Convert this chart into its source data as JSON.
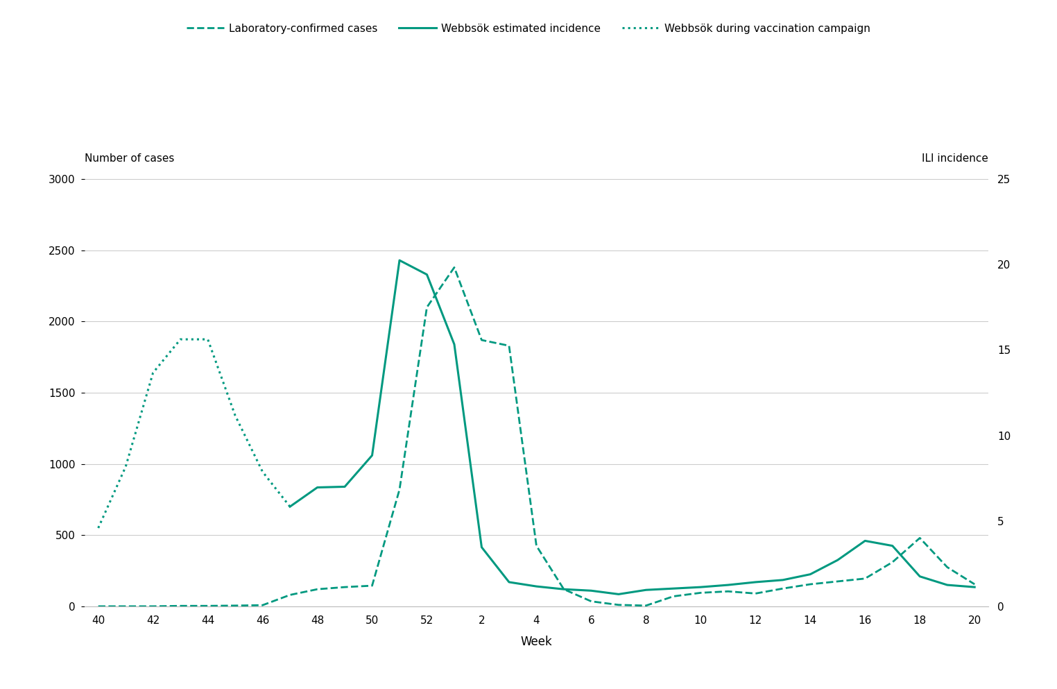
{
  "color": "#009980",
  "background": "#ffffff",
  "title_left": "Number of cases",
  "title_right": "ILI incidence",
  "xlabel": "Week",
  "ylim_left": [
    0,
    3000
  ],
  "ylim_right": [
    0,
    25
  ],
  "yticks_left": [
    0,
    500,
    1000,
    1500,
    2000,
    2500,
    3000
  ],
  "yticks_right": [
    0,
    5,
    10,
    15,
    20,
    25
  ],
  "xtick_labels": [
    "40",
    "42",
    "44",
    "46",
    "48",
    "50",
    "52",
    "2",
    "4",
    "6",
    "8",
    "10",
    "12",
    "14",
    "16",
    "18",
    "20"
  ],
  "legend_labels": [
    "Laboratory-confirmed cases",
    "Webbsök estimated incidence",
    "Webbsök during vaccination campaign"
  ],
  "lab_x": [
    0,
    1,
    2,
    3,
    4,
    5,
    6,
    7,
    8,
    9,
    10,
    11,
    12,
    13,
    14,
    15,
    16,
    17,
    18,
    19,
    20,
    21,
    22,
    23,
    24,
    25,
    26,
    27,
    28,
    29,
    30,
    31,
    32
  ],
  "lab_y": [
    0,
    0,
    0,
    3,
    3,
    5,
    8,
    80,
    120,
    135,
    145,
    820,
    2100,
    2380,
    1870,
    1830,
    425,
    120,
    35,
    10,
    5,
    70,
    95,
    105,
    90,
    125,
    155,
    175,
    195,
    310,
    480,
    275,
    155
  ],
  "est_x": [
    7,
    8,
    9,
    10,
    11,
    12,
    13,
    14,
    15,
    16,
    17,
    18,
    19,
    20,
    21,
    22,
    23,
    24,
    25,
    26,
    27,
    28,
    29,
    30,
    31,
    32
  ],
  "est_y": [
    700,
    835,
    840,
    1060,
    2430,
    2330,
    1840,
    415,
    170,
    140,
    120,
    110,
    85,
    115,
    125,
    135,
    150,
    170,
    185,
    225,
    325,
    460,
    425,
    210,
    150,
    135
  ],
  "vacc_x": [
    0,
    1,
    2,
    3,
    4,
    5,
    6,
    7
  ],
  "vacc_y": [
    550,
    980,
    1640,
    1875,
    1875,
    1340,
    945,
    700
  ]
}
